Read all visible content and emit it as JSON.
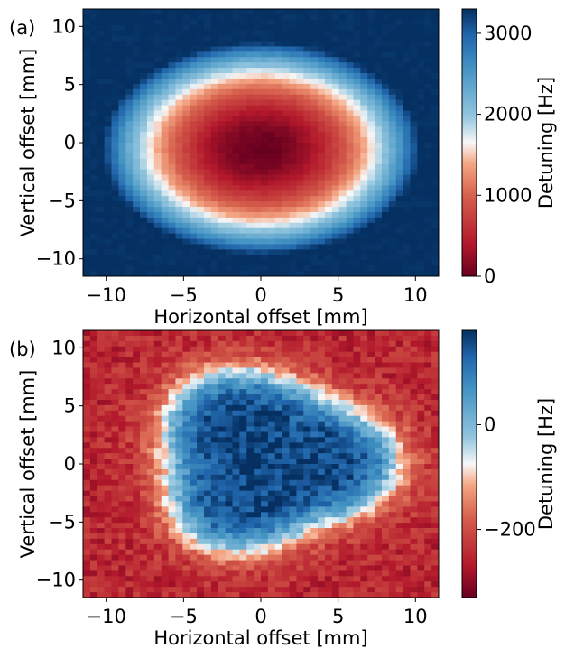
{
  "chart_data": [
    {
      "type": "heatmap",
      "panel_label": "(a)",
      "xlabel": "Horizontal offset [mm]",
      "ylabel": "Vertical offset [mm]",
      "xlim": [
        -11.5,
        11.5
      ],
      "ylim": [
        -11.5,
        11.5
      ],
      "xticks": [
        -10,
        -5,
        0,
        5,
        10
      ],
      "yticks": [
        -10,
        -5,
        0,
        5,
        10
      ],
      "xtick_labels": [
        "−10",
        "−5",
        "0",
        "5",
        "10"
      ],
      "ytick_labels": [
        "−10",
        "−5",
        "0",
        "5",
        "10"
      ],
      "colorbar": {
        "label": "Detuning [Hz]",
        "range": [
          0,
          3300
        ],
        "ticks": [
          0,
          1000,
          2000,
          3000
        ],
        "tick_labels": [
          "0",
          "1000",
          "2000",
          "3000"
        ],
        "colormap": "RdBu"
      },
      "field": {
        "description": "radial bowl, minimum at center",
        "center": [
          0,
          -0.5
        ],
        "min_value": 0,
        "edge_value": 3300
      }
    },
    {
      "type": "heatmap",
      "panel_label": "(b)",
      "xlabel": "Horizontal offset [mm]",
      "ylabel": "Vertical offset [mm]",
      "xlim": [
        -11.5,
        11.5
      ],
      "ylim": [
        -11.5,
        11.5
      ],
      "xticks": [
        -10,
        -5,
        0,
        5,
        10
      ],
      "yticks": [
        -10,
        -5,
        0,
        5,
        10
      ],
      "xtick_labels": [
        "−10",
        "−5",
        "0",
        "5",
        "10"
      ],
      "ytick_labels": [
        "−10",
        "−5",
        "0",
        "5",
        "10"
      ],
      "colorbar": {
        "label": "Detuning [Hz]",
        "range": [
          -330,
          180
        ],
        "ticks": [
          -200,
          0
        ],
        "tick_labels": [
          "−200",
          "0"
        ],
        "colormap": "RdBu"
      },
      "field": {
        "description": "positive plateau inside central region, negative outside",
        "center": [
          0,
          0
        ],
        "inner_value": 160,
        "outer_value": -250
      }
    }
  ],
  "colors": {
    "dark_red": "#67001f",
    "red": "#b2182b",
    "light_red": "#f4a582",
    "white": "#f7f7f7",
    "light_blue": "#92c5de",
    "blue": "#2166ac",
    "dark_blue": "#053061"
  }
}
